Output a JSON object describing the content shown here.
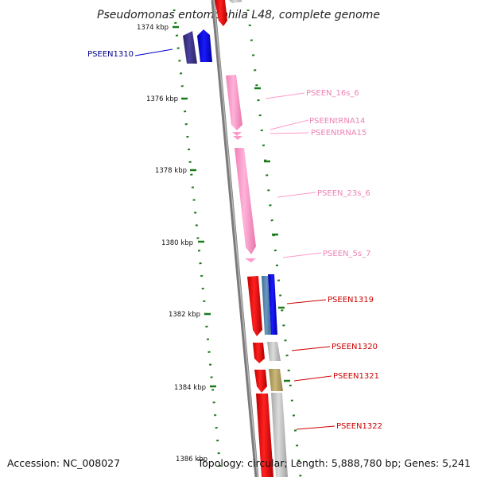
{
  "title": "Pseudomonas entomophila L48, complete genome",
  "footer": {
    "accession": "Accession: NC_008027",
    "summary": "Topology: circular; Length: 5,888,780 bp; Genes: 5,241"
  },
  "colors": {
    "backbone": "#808080",
    "tick": "#1a7a1a",
    "protein_forward": "#ff0000",
    "protein_reverse": "#0000ff",
    "rrna": "#ff99cc",
    "trna": "#ff99cc",
    "dark_gene": "#3a3380",
    "grey_gene": "#c0c0c0",
    "olive_gene": "#b5a060",
    "label_blue": "#00008b",
    "label_pink": "#ee82b4",
    "label_red": "#cc0000"
  },
  "ticks": [
    {
      "label": "1374 kbp"
    },
    {
      "label": "1376 kbp"
    },
    {
      "label": "1378 kbp"
    },
    {
      "label": "1380 kbp"
    },
    {
      "label": "1382 kbp"
    },
    {
      "label": "1384 kbp"
    },
    {
      "label": "1386 kbp"
    }
  ],
  "gene_labels": [
    {
      "text": "PSEEN1310",
      "kind": "protein"
    },
    {
      "text": "PSEEN_16s_6",
      "kind": "rrna"
    },
    {
      "text": "PSEENtRNA14",
      "kind": "trna"
    },
    {
      "text": "PSEENtRNA15",
      "kind": "trna"
    },
    {
      "text": "PSEEN_23s_6",
      "kind": "rrna"
    },
    {
      "text": "PSEEN_5s_7",
      "kind": "rrna"
    },
    {
      "text": "PSEEN1319",
      "kind": "protein"
    },
    {
      "text": "PSEEN1320",
      "kind": "protein"
    },
    {
      "text": "PSEEN1321",
      "kind": "protein"
    },
    {
      "text": "PSEEN1322",
      "kind": "protein"
    }
  ]
}
